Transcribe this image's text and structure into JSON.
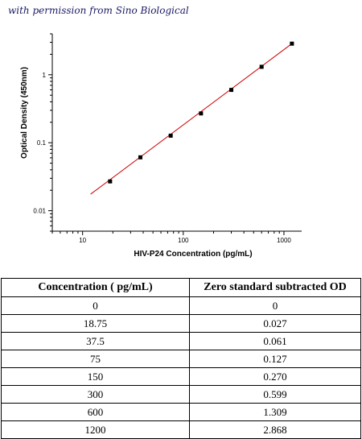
{
  "credit": "with permission from Sino Biological",
  "chart_data": {
    "type": "scatter",
    "xlabel": "HIV-P24 Concentration (pg/mL)",
    "ylabel": "Optical Density (450nm)",
    "xscale": "log",
    "yscale": "log",
    "xlim": [
      5,
      1500
    ],
    "ylim": [
      0.005,
      4
    ],
    "xticks": [
      10,
      100,
      1000
    ],
    "xtick_labels": [
      "10",
      "100",
      "1000"
    ],
    "yticks": [
      0.01,
      0.1,
      1
    ],
    "ytick_labels": [
      "0.01",
      "0.1",
      "1"
    ],
    "grid": false,
    "series": [
      {
        "x": [
          18.75,
          37.5,
          75,
          150,
          300,
          600,
          1200
        ],
        "y": [
          0.027,
          0.061,
          0.127,
          0.27,
          0.599,
          1.309,
          2.868
        ],
        "marker": "square",
        "color": "#000000"
      }
    ],
    "fit_line": {
      "x": [
        12,
        1200
      ],
      "y": [
        0.0175,
        2.868
      ],
      "color": "#cc0000"
    }
  },
  "table": {
    "headers": [
      "Concentration ( pg/mL)",
      "Zero standard subtracted OD"
    ],
    "rows": [
      [
        "0",
        "0"
      ],
      [
        "18.75",
        "0.027"
      ],
      [
        "37.5",
        "0.061"
      ],
      [
        "75",
        "0.127"
      ],
      [
        "150",
        "0.270"
      ],
      [
        "300",
        "0.599"
      ],
      [
        "600",
        "1.309"
      ],
      [
        "1200",
        "2.868"
      ]
    ]
  }
}
